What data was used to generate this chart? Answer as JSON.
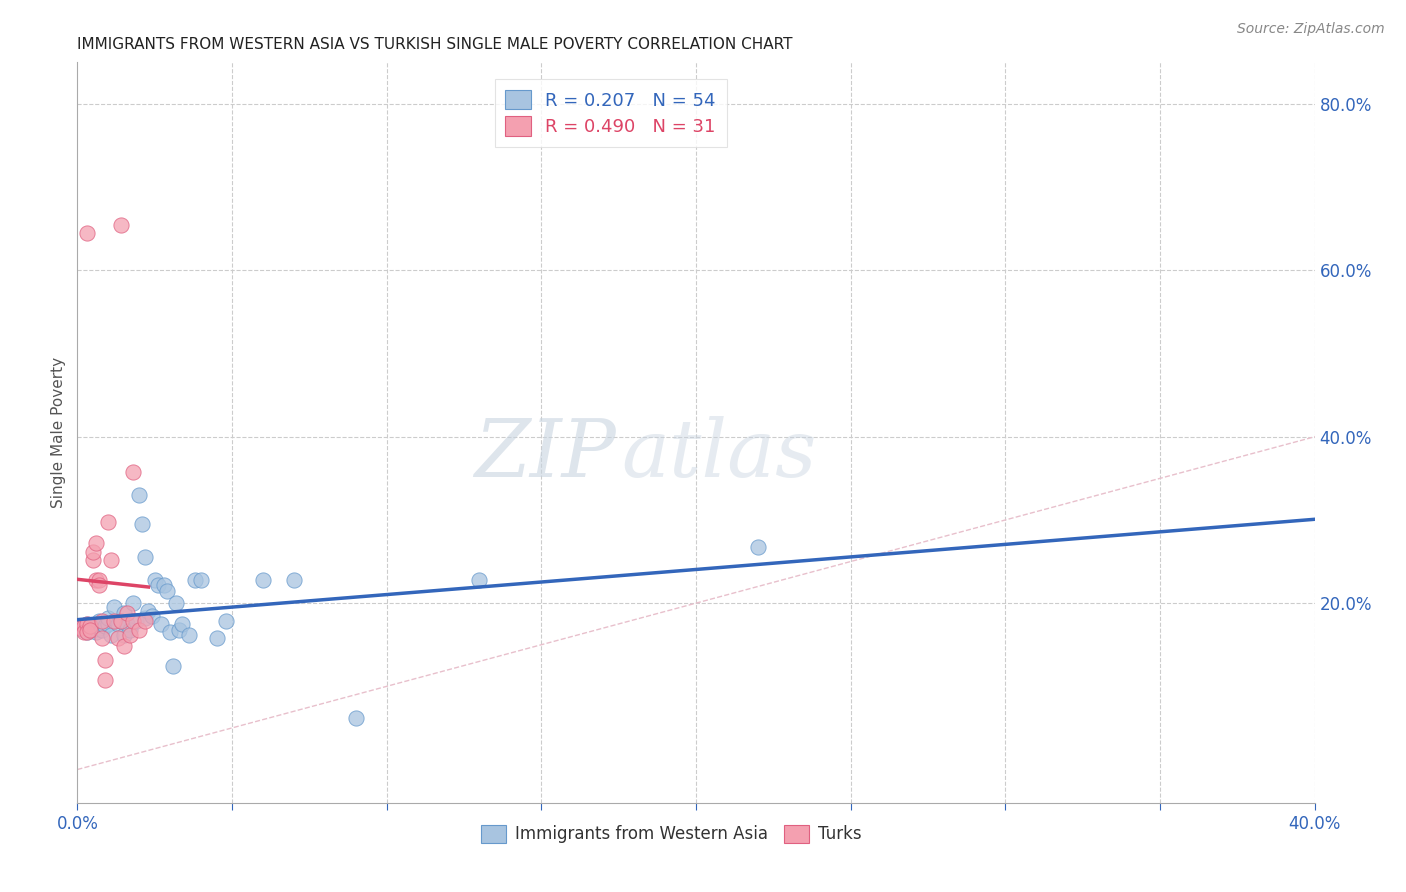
{
  "title": "IMMIGRANTS FROM WESTERN ASIA VS TURKISH SINGLE MALE POVERTY CORRELATION CHART",
  "source": "Source: ZipAtlas.com",
  "ylabel": "Single Male Poverty",
  "xlim": [
    0.0,
    0.4
  ],
  "ylim": [
    -0.04,
    0.85
  ],
  "xticks": [
    0.0,
    0.05,
    0.1,
    0.15,
    0.2,
    0.25,
    0.3,
    0.35,
    0.4
  ],
  "yticks_right": [
    0.0,
    0.2,
    0.4,
    0.6,
    0.8
  ],
  "yticklabels_right": [
    "",
    "20.0%",
    "40.0%",
    "60.0%",
    "80.0%"
  ],
  "legend_r_blue": "0.207",
  "legend_n_blue": "54",
  "legend_r_pink": "0.490",
  "legend_n_pink": "31",
  "watermark_zip": "ZIP",
  "watermark_atlas": "atlas",
  "blue_color": "#a8c4e0",
  "pink_color": "#f4a0b0",
  "blue_edge_color": "#6699cc",
  "pink_edge_color": "#e06080",
  "blue_line_color": "#3366bb",
  "pink_line_color": "#dd4466",
  "diagonal_color": "#e8c0cc",
  "grid_color": "#cccccc",
  "blue_scatter": [
    [
      0.001,
      0.17
    ],
    [
      0.002,
      0.172
    ],
    [
      0.002,
      0.168
    ],
    [
      0.003,
      0.175
    ],
    [
      0.003,
      0.165
    ],
    [
      0.004,
      0.17
    ],
    [
      0.004,
      0.168
    ],
    [
      0.005,
      0.173
    ],
    [
      0.005,
      0.168
    ],
    [
      0.006,
      0.172
    ],
    [
      0.006,
      0.165
    ],
    [
      0.007,
      0.17
    ],
    [
      0.007,
      0.178
    ],
    [
      0.008,
      0.175
    ],
    [
      0.008,
      0.168
    ],
    [
      0.009,
      0.172
    ],
    [
      0.01,
      0.175
    ],
    [
      0.01,
      0.182
    ],
    [
      0.011,
      0.162
    ],
    [
      0.012,
      0.195
    ],
    [
      0.013,
      0.175
    ],
    [
      0.014,
      0.178
    ],
    [
      0.015,
      0.188
    ],
    [
      0.015,
      0.162
    ],
    [
      0.016,
      0.175
    ],
    [
      0.017,
      0.168
    ],
    [
      0.018,
      0.2
    ],
    [
      0.019,
      0.178
    ],
    [
      0.02,
      0.33
    ],
    [
      0.021,
      0.295
    ],
    [
      0.022,
      0.255
    ],
    [
      0.022,
      0.182
    ],
    [
      0.023,
      0.19
    ],
    [
      0.024,
      0.185
    ],
    [
      0.025,
      0.228
    ],
    [
      0.026,
      0.222
    ],
    [
      0.027,
      0.175
    ],
    [
      0.028,
      0.222
    ],
    [
      0.029,
      0.215
    ],
    [
      0.03,
      0.165
    ],
    [
      0.031,
      0.125
    ],
    [
      0.032,
      0.2
    ],
    [
      0.033,
      0.168
    ],
    [
      0.034,
      0.175
    ],
    [
      0.036,
      0.162
    ],
    [
      0.038,
      0.228
    ],
    [
      0.04,
      0.228
    ],
    [
      0.045,
      0.158
    ],
    [
      0.048,
      0.178
    ],
    [
      0.06,
      0.228
    ],
    [
      0.07,
      0.228
    ],
    [
      0.09,
      0.062
    ],
    [
      0.13,
      0.228
    ],
    [
      0.22,
      0.268
    ]
  ],
  "pink_scatter": [
    [
      0.001,
      0.17
    ],
    [
      0.002,
      0.172
    ],
    [
      0.002,
      0.165
    ],
    [
      0.003,
      0.175
    ],
    [
      0.003,
      0.165
    ],
    [
      0.004,
      0.172
    ],
    [
      0.004,
      0.168
    ],
    [
      0.005,
      0.252
    ],
    [
      0.005,
      0.262
    ],
    [
      0.006,
      0.272
    ],
    [
      0.006,
      0.228
    ],
    [
      0.007,
      0.228
    ],
    [
      0.007,
      0.222
    ],
    [
      0.008,
      0.178
    ],
    [
      0.008,
      0.158
    ],
    [
      0.009,
      0.108
    ],
    [
      0.009,
      0.132
    ],
    [
      0.01,
      0.298
    ],
    [
      0.011,
      0.252
    ],
    [
      0.012,
      0.178
    ],
    [
      0.013,
      0.158
    ],
    [
      0.014,
      0.178
    ],
    [
      0.015,
      0.148
    ],
    [
      0.016,
      0.188
    ],
    [
      0.017,
      0.162
    ],
    [
      0.018,
      0.358
    ],
    [
      0.018,
      0.178
    ],
    [
      0.02,
      0.168
    ],
    [
      0.022,
      0.178
    ],
    [
      0.014,
      0.655
    ],
    [
      0.003,
      0.645
    ]
  ]
}
